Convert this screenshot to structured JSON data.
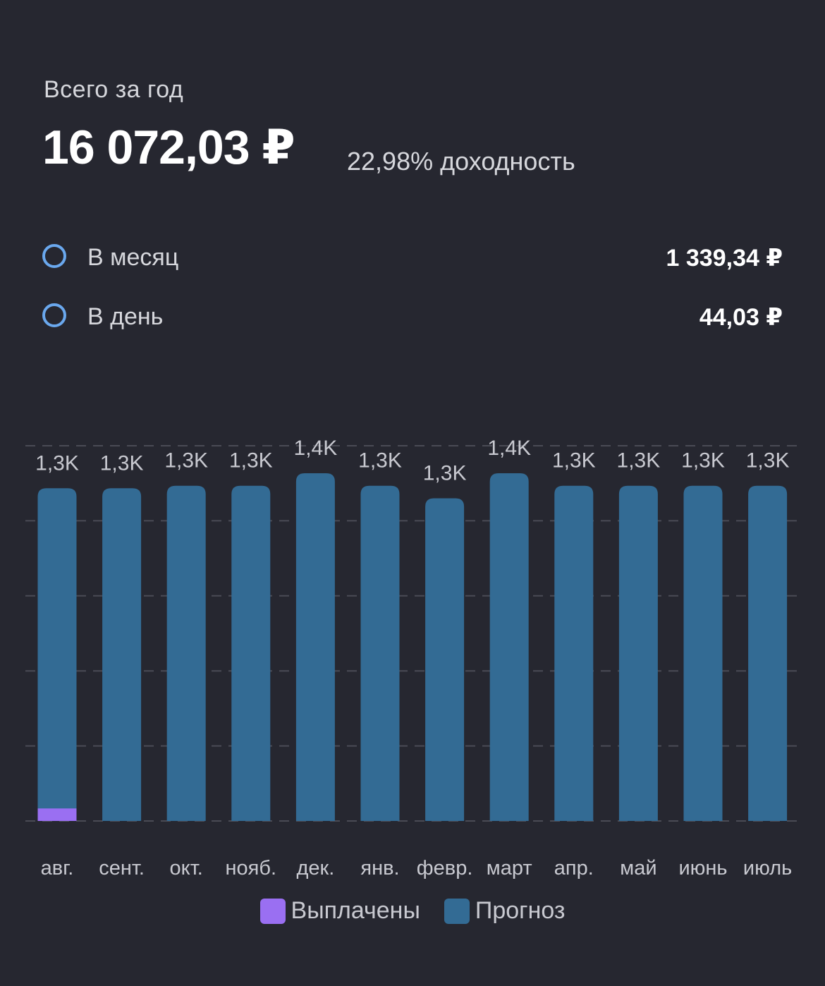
{
  "summary": {
    "period_label": "Всего за год",
    "total": "16 072,03 ₽",
    "yield": "22,98% доходность"
  },
  "stats": {
    "month_label": "В месяц",
    "month_value": "1 339,34 ₽",
    "day_label": "В день",
    "day_value": "44,03 ₽"
  },
  "colors": {
    "background": "#262730",
    "paid": "#9a6ff2",
    "forecast": "#336b94",
    "radio": "#6aa8ee",
    "grid": "#4a4b55"
  },
  "chart_data": {
    "type": "bar",
    "stacked": true,
    "categories": [
      "авг.",
      "сент.",
      "окт.",
      "нояб.",
      "дек.",
      "янв.",
      "февр.",
      "март",
      "апр.",
      "май",
      "июнь",
      "июль"
    ],
    "value_labels": [
      "1,3K",
      "1,3K",
      "1,3K",
      "1,3K",
      "1,4K",
      "1,3K",
      "1,3K",
      "1,4K",
      "1,3K",
      "1,3K",
      "1,3K",
      "1,3K"
    ],
    "series": [
      {
        "name": "Выплачены",
        "color": "#9a6ff2",
        "values": [
          50,
          0,
          0,
          0,
          0,
          0,
          0,
          0,
          0,
          0,
          0,
          0
        ]
      },
      {
        "name": "Прогноз",
        "color": "#336b94",
        "values": [
          1280,
          1330,
          1340,
          1340,
          1390,
          1340,
          1290,
          1390,
          1340,
          1340,
          1340,
          1340
        ]
      }
    ],
    "ylim": [
      0,
      1500
    ],
    "grid": true
  }
}
